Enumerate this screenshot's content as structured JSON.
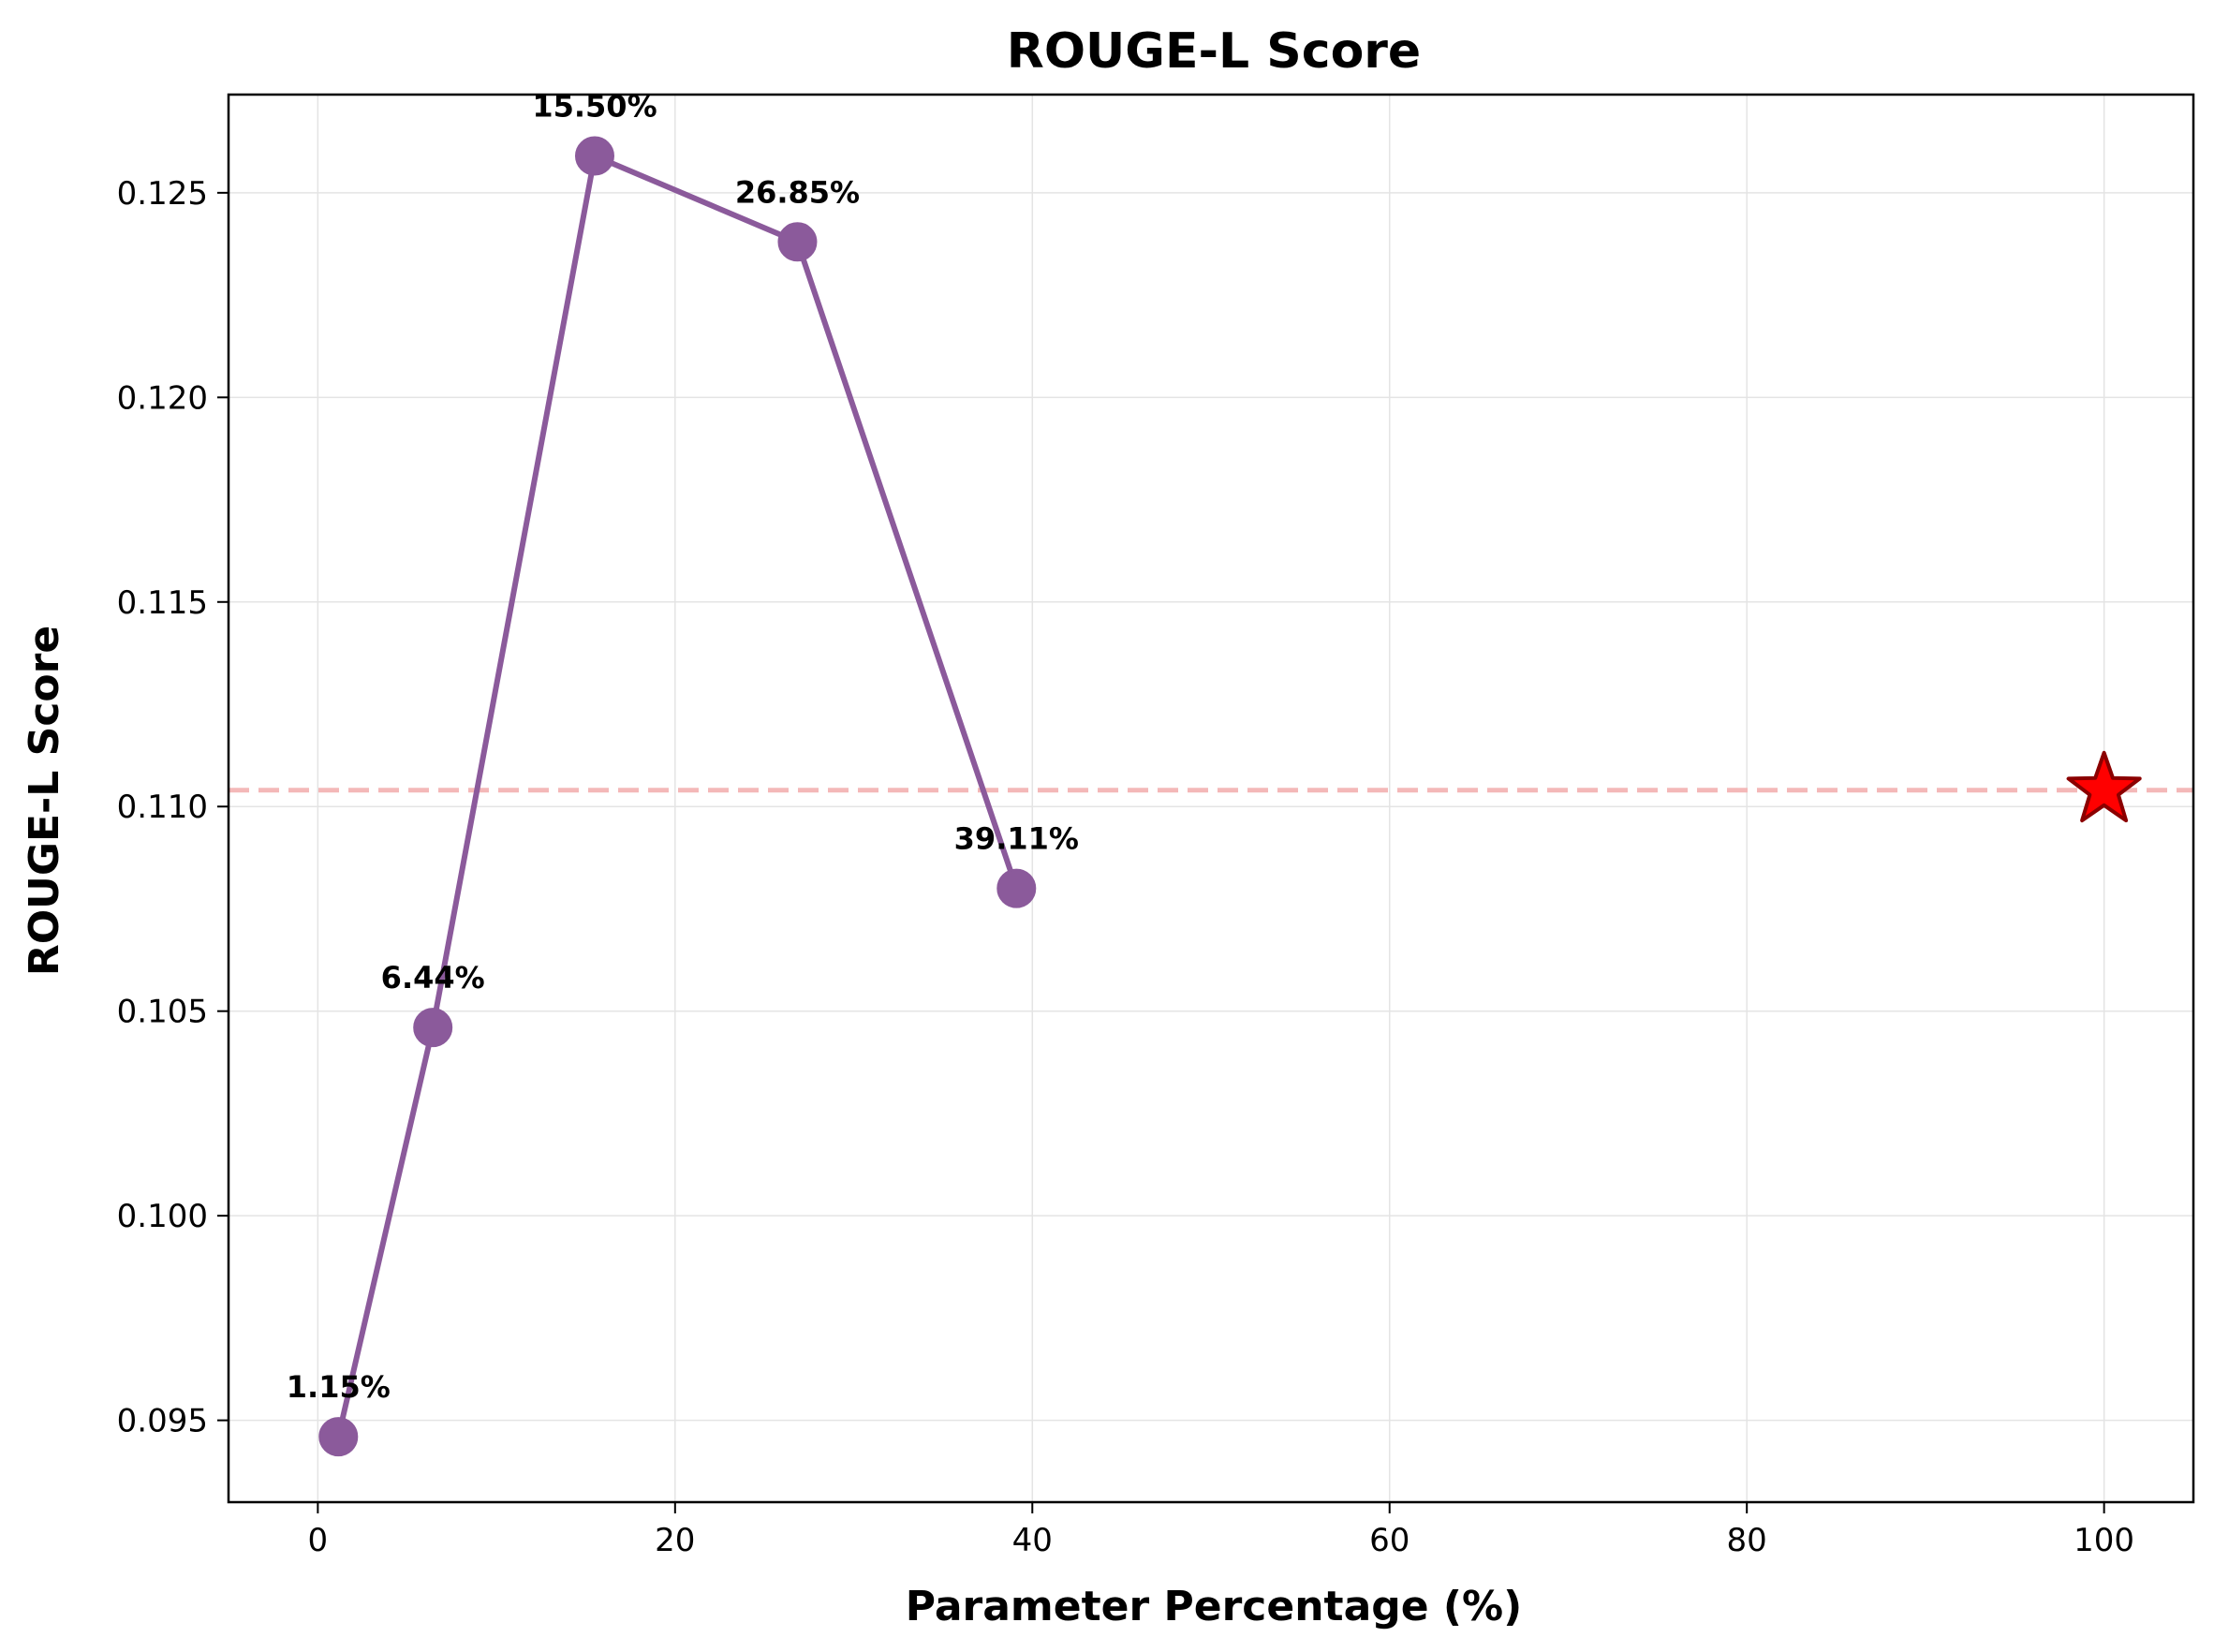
{
  "chart_data": {
    "type": "line",
    "title": "ROUGE-L Score",
    "xlabel": "Parameter Percentage (%)",
    "ylabel": "ROUGE-L Score",
    "xlim": [
      -5,
      105
    ],
    "ylim": [
      0.093,
      0.1274
    ],
    "xticks": [
      0,
      20,
      40,
      60,
      80,
      100
    ],
    "xtick_labels": [
      "0",
      "20",
      "40",
      "60",
      "80",
      "100"
    ],
    "yticks": [
      0.095,
      0.1,
      0.105,
      0.11,
      0.115,
      0.12,
      0.125
    ],
    "ytick_labels": [
      "0.095",
      "0.100",
      "0.105",
      "0.110",
      "0.115",
      "0.120",
      "0.125"
    ],
    "grid": true,
    "series": [
      {
        "color": "#8b5a9b",
        "points": [
          {
            "x": 1.15,
            "y": 0.0946,
            "label": "1.15%"
          },
          {
            "x": 6.44,
            "y": 0.1046,
            "label": "6.44%"
          },
          {
            "x": 15.5,
            "y": 0.1259,
            "label": "15.50%"
          },
          {
            "x": 26.85,
            "y": 0.1238,
            "label": "26.85%"
          },
          {
            "x": 39.11,
            "y": 0.108,
            "label": "39.11%"
          }
        ]
      }
    ],
    "reference_line": {
      "y": 0.1104,
      "style": "dashed",
      "color": "#f4b8b8"
    },
    "reference_marker": {
      "x": 100,
      "y": 0.1104,
      "shape": "star",
      "color": "#ff0000",
      "edge_color": "#8b0000"
    }
  }
}
